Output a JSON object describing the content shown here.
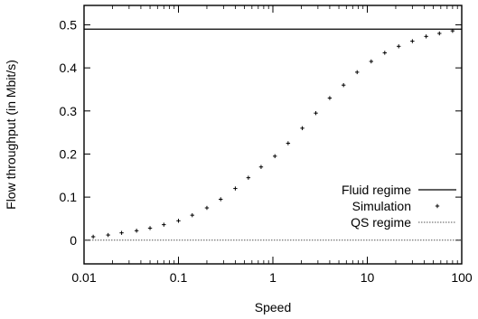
{
  "chart_data": {
    "type": "line",
    "title": "",
    "xlabel": "Speed",
    "ylabel": "Flow throughput (in Mbit/s)",
    "x_scale": "log",
    "xlim": [
      0.01,
      100
    ],
    "ylim": [
      -0.055,
      0.545
    ],
    "x_ticks": [
      {
        "value": 0.01,
        "label": "0.01"
      },
      {
        "value": 0.1,
        "label": "0.1"
      },
      {
        "value": 1,
        "label": "1"
      },
      {
        "value": 10,
        "label": "10"
      },
      {
        "value": 100,
        "label": "100"
      }
    ],
    "y_ticks": [
      {
        "value": 0,
        "label": "0"
      },
      {
        "value": 0.1,
        "label": "0.1"
      },
      {
        "value": 0.2,
        "label": "0.2"
      },
      {
        "value": 0.3,
        "label": "0.3"
      },
      {
        "value": 0.4,
        "label": "0.4"
      },
      {
        "value": 0.5,
        "label": "0.5"
      }
    ],
    "grid": false,
    "legend_position": "bottom-right",
    "series": [
      {
        "name": "Fluid regime",
        "style": "solid-line",
        "color": "#000000",
        "x": [
          0.01,
          100
        ],
        "y": [
          0.49,
          0.49
        ]
      },
      {
        "name": "Simulation",
        "style": "plus-markers",
        "color": "#000000",
        "x": [
          0.0125,
          0.018,
          0.025,
          0.036,
          0.05,
          0.07,
          0.1,
          0.14,
          0.2,
          0.28,
          0.4,
          0.55,
          0.75,
          1.05,
          1.45,
          2.05,
          2.85,
          4.0,
          5.6,
          7.8,
          11,
          15.3,
          21.5,
          30,
          42,
          58,
          80
        ],
        "y": [
          0.008,
          0.012,
          0.017,
          0.022,
          0.028,
          0.036,
          0.045,
          0.058,
          0.075,
          0.095,
          0.12,
          0.145,
          0.17,
          0.195,
          0.225,
          0.26,
          0.295,
          0.33,
          0.36,
          0.39,
          0.415,
          0.435,
          0.45,
          0.462,
          0.473,
          0.48,
          0.486
        ]
      },
      {
        "name": "QS regime",
        "style": "dotted-line",
        "color": "#555555",
        "x": [
          0.01,
          100
        ],
        "y": [
          0,
          0
        ]
      }
    ]
  }
}
